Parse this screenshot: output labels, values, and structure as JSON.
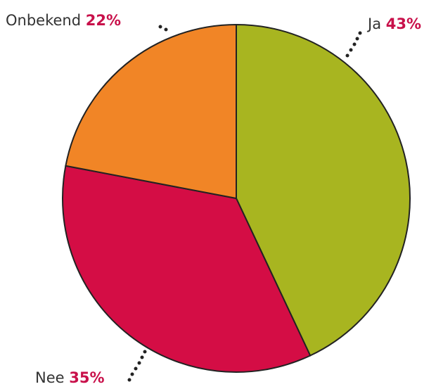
{
  "chart_data": {
    "type": "pie",
    "categories": [
      "Ja",
      "Nee",
      "Onbekend"
    ],
    "values": [
      43,
      35,
      22
    ],
    "value_labels": [
      "43%",
      "35%",
      "22%"
    ],
    "colors": [
      "#a8b520",
      "#d40d45",
      "#f18526"
    ]
  }
}
